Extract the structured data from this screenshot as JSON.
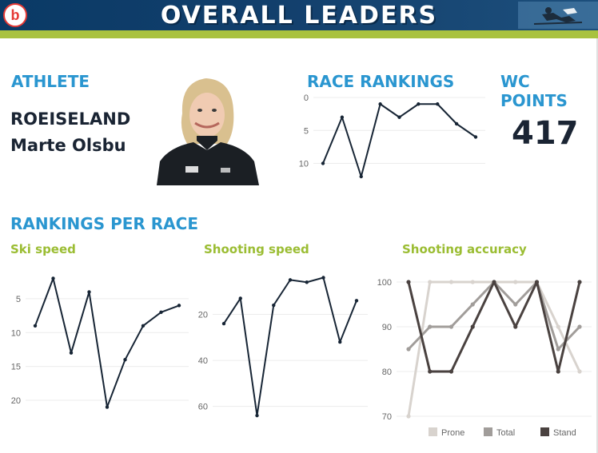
{
  "header": {
    "title": "OVERALL LEADERS",
    "logo_letter": "b"
  },
  "athlete": {
    "label": "ATHLETE",
    "last_name": "ROEISELAND",
    "first_names": "Marte Olsbu",
    "photo": "athlete-photo"
  },
  "wc_points": {
    "label": "WC POINTS",
    "value": "417"
  },
  "section_title": "RANKINGS PER RACE",
  "colors": {
    "accent_blue": "#2a96d0",
    "accent_green": "#9bbd33",
    "line": "#172535",
    "prone": "#d8d3ce",
    "total": "#a19d9a",
    "stand": "#4a4240"
  },
  "chart_data": [
    {
      "id": "race_rankings",
      "type": "line",
      "title": "RACE RANKINGS",
      "x": [
        1,
        2,
        3,
        4,
        5,
        6,
        7,
        8,
        9
      ],
      "series": [
        {
          "values": [
            10,
            3,
            12,
            1,
            3,
            1,
            1,
            4,
            6
          ]
        }
      ],
      "ylim": [
        0,
        12
      ],
      "y_inverted": true,
      "yticks": [
        0,
        5,
        10
      ],
      "grid": true
    },
    {
      "id": "ski_speed",
      "type": "line",
      "title": "Ski speed",
      "x": [
        1,
        2,
        3,
        4,
        5,
        6,
        7,
        8,
        9
      ],
      "series": [
        {
          "values": [
            9,
            2,
            13,
            4,
            21,
            14,
            9,
            7,
            6
          ]
        }
      ],
      "ylim": [
        1,
        22
      ],
      "y_inverted": true,
      "yticks": [
        5,
        10,
        15,
        20
      ],
      "grid": true
    },
    {
      "id": "shooting_speed",
      "type": "line",
      "title": "Shooting speed",
      "x": [
        1,
        2,
        3,
        4,
        5,
        6,
        7,
        8,
        9
      ],
      "series": [
        {
          "values": [
            24,
            13,
            64,
            16,
            5,
            6,
            4,
            32,
            14
          ]
        }
      ],
      "ylim": [
        0,
        65
      ],
      "y_inverted": true,
      "yticks": [
        20,
        40,
        60
      ],
      "grid": true
    },
    {
      "id": "shooting_accuracy",
      "type": "line",
      "title": "Shooting accuracy",
      "x": [
        1,
        2,
        3,
        4,
        5,
        6,
        7,
        8,
        9
      ],
      "series": [
        {
          "name": "Prone",
          "values": [
            70,
            100,
            100,
            100,
            100,
            100,
            100,
            90,
            80
          ]
        },
        {
          "name": "Total",
          "values": [
            85,
            90,
            90,
            95,
            100,
            95,
            100,
            85,
            90
          ]
        },
        {
          "name": "Stand",
          "values": [
            100,
            80,
            80,
            90,
            100,
            90,
            100,
            80,
            100
          ]
        }
      ],
      "ylim": [
        70,
        100
      ],
      "yticks": [
        70,
        80,
        90,
        100
      ],
      "grid": true,
      "legend": "bottom"
    }
  ]
}
